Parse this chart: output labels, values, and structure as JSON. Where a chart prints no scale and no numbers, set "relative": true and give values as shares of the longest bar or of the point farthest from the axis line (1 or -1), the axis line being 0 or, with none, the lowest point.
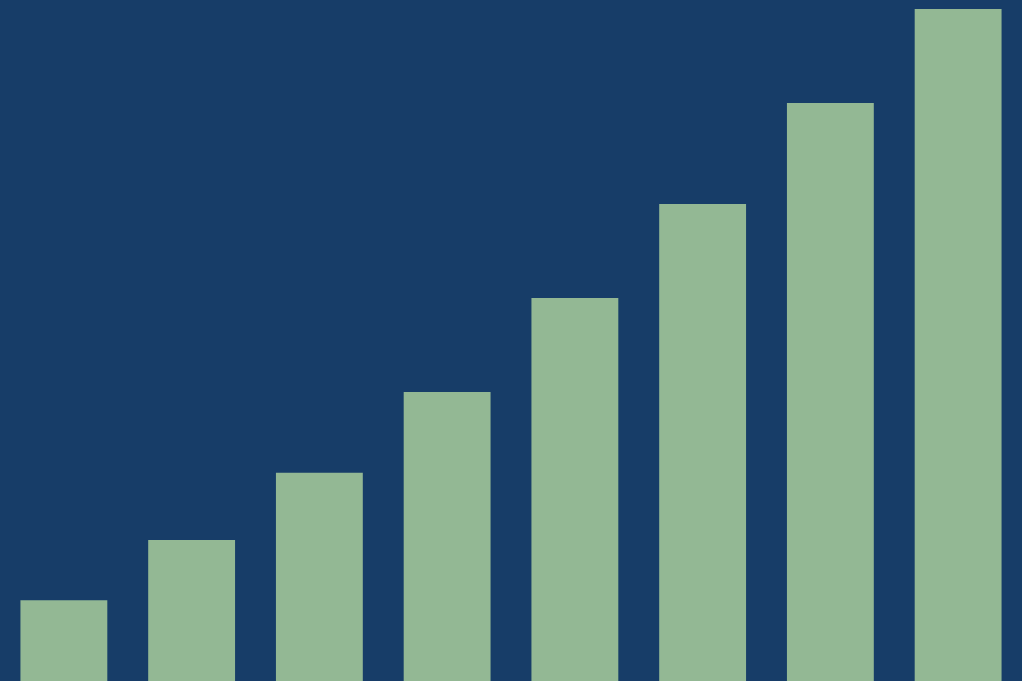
{
  "chart_data": {
    "type": "bar",
    "relative": true,
    "categories": [
      null,
      null,
      null,
      null,
      null,
      null,
      null,
      null
    ],
    "values": [
      0.12,
      0.21,
      0.31,
      0.43,
      0.57,
      0.71,
      0.86,
      1
    ],
    "color": "#93b894"
  }
}
